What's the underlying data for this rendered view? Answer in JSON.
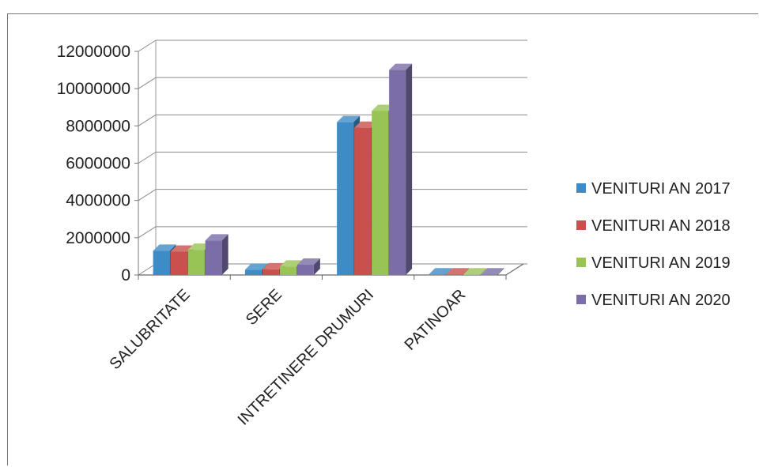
{
  "chart_data": {
    "type": "bar",
    "categories": [
      "SALUBRITATE",
      "SERE",
      "INTRETINERE DRUMURI",
      "PATINOAR"
    ],
    "series": [
      {
        "name": "VENITURI AN 2017",
        "values": [
          1300000,
          280000,
          8200000,
          30000
        ]
      },
      {
        "name": "VENITURI AN 2018",
        "values": [
          1250000,
          300000,
          7900000,
          30000
        ]
      },
      {
        "name": "VENITURI AN 2019",
        "values": [
          1350000,
          450000,
          8800000,
          30000
        ]
      },
      {
        "name": "VENITURI AN 2020",
        "values": [
          1850000,
          550000,
          11000000,
          30000
        ]
      }
    ],
    "yticks": [
      "0",
      "2000000",
      "4000000",
      "6000000",
      "8000000",
      "10000000",
      "12000000"
    ],
    "ylim": [
      0,
      12000000
    ],
    "grid": true,
    "legend_position": "right",
    "colors": [
      "#3d8cc7",
      "#c9504c",
      "#98c355",
      "#7b6ea8"
    ]
  }
}
